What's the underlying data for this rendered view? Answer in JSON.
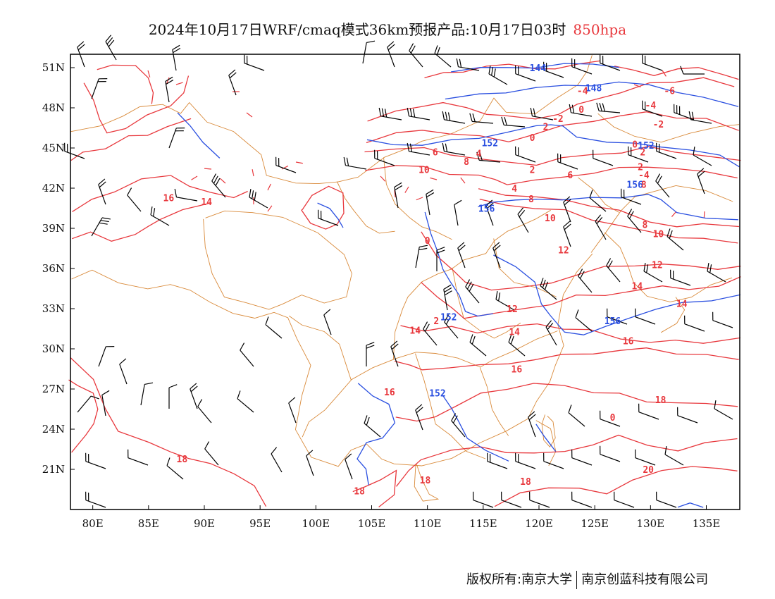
{
  "title": {
    "main": "2024年10月17日WRF/cmaq模式36km预报产品:10月17日03时",
    "level": "850hpa"
  },
  "map": {
    "type": "weather-chart",
    "lon_range": [
      78,
      138
    ],
    "lat_range": [
      18,
      52
    ],
    "lat_ticks": [
      "51N",
      "48N",
      "45N",
      "42N",
      "39N",
      "36N",
      "33N",
      "30N",
      "27N",
      "24N",
      "21N"
    ],
    "lon_ticks": [
      "80E",
      "85E",
      "90E",
      "95E",
      "100E",
      "105E",
      "110E",
      "115E",
      "120E",
      "125E",
      "130E",
      "135E"
    ],
    "geopotential_color": "#2a4fe0",
    "temperature_color": "#e8383d",
    "border_color": "#d98a3a",
    "wind_color": "#000000",
    "geopotential_labels": [
      {
        "text": "144",
        "lon": 119.9,
        "lat": 51.0
      },
      {
        "text": "148",
        "lon": 124.9,
        "lat": 49.5
      },
      {
        "text": "152",
        "lon": 115.6,
        "lat": 45.4
      },
      {
        "text": "152",
        "lon": 129.6,
        "lat": 45.2
      },
      {
        "text": "156",
        "lon": 128.6,
        "lat": 42.3
      },
      {
        "text": "156",
        "lon": 115.3,
        "lat": 40.5
      },
      {
        "text": "152",
        "lon": 111.9,
        "lat": 32.4
      },
      {
        "text": "156",
        "lon": 126.6,
        "lat": 32.1
      },
      {
        "text": "152",
        "lon": 110.9,
        "lat": 26.7
      }
    ],
    "temperature_labels": [
      {
        "text": "-4",
        "lon": 123.9,
        "lat": 49.3
      },
      {
        "text": "-6",
        "lon": 131.7,
        "lat": 49.3
      },
      {
        "text": "-4",
        "lon": 130.0,
        "lat": 48.2
      },
      {
        "text": "-2",
        "lon": 130.7,
        "lat": 46.8
      },
      {
        "text": "2",
        "lon": 120.6,
        "lat": 46.6
      },
      {
        "text": "0",
        "lon": 119.4,
        "lat": 45.8
      },
      {
        "text": "0",
        "lon": 128.6,
        "lat": 45.3
      },
      {
        "text": "2",
        "lon": 129.3,
        "lat": 44.7
      },
      {
        "text": "2",
        "lon": 129.1,
        "lat": 43.6
      },
      {
        "text": "-4",
        "lon": 129.4,
        "lat": 43.0
      },
      {
        "text": "6",
        "lon": 110.7,
        "lat": 44.7
      },
      {
        "text": "4",
        "lon": 114.6,
        "lat": 44.6
      },
      {
        "text": "8",
        "lon": 113.5,
        "lat": 44.0
      },
      {
        "text": "10",
        "lon": 109.7,
        "lat": 43.4
      },
      {
        "text": "2",
        "lon": 119.4,
        "lat": 43.4
      },
      {
        "text": "6",
        "lon": 122.8,
        "lat": 43.0
      },
      {
        "text": "4",
        "lon": 117.8,
        "lat": 42.0
      },
      {
        "text": "8",
        "lon": 119.3,
        "lat": 41.2
      },
      {
        "text": "10",
        "lon": 121.0,
        "lat": 39.8
      },
      {
        "text": "8",
        "lon": 129.4,
        "lat": 42.3
      },
      {
        "text": "8",
        "lon": 129.5,
        "lat": 39.3
      },
      {
        "text": "10",
        "lon": 130.7,
        "lat": 38.6
      },
      {
        "text": "12",
        "lon": 122.2,
        "lat": 37.4
      },
      {
        "text": "12",
        "lon": 130.6,
        "lat": 36.3
      },
      {
        "text": "14",
        "lon": 128.8,
        "lat": 34.7
      },
      {
        "text": "14",
        "lon": 132.8,
        "lat": 33.4
      },
      {
        "text": "12",
        "lon": 117.6,
        "lat": 33.0
      },
      {
        "text": "2",
        "lon": 110.8,
        "lat": 32.1
      },
      {
        "text": "14",
        "lon": 108.9,
        "lat": 31.4
      },
      {
        "text": "14",
        "lon": 117.8,
        "lat": 31.3
      },
      {
        "text": "16",
        "lon": 128.0,
        "lat": 30.6
      },
      {
        "text": "16",
        "lon": 118.0,
        "lat": 28.5
      },
      {
        "text": "16",
        "lon": 106.6,
        "lat": 26.8
      },
      {
        "text": "0",
        "lon": 126.6,
        "lat": 24.9
      },
      {
        "text": "18",
        "lon": 130.9,
        "lat": 26.2
      },
      {
        "text": "18",
        "lon": 88.0,
        "lat": 21.8
      },
      {
        "text": "20",
        "lon": 129.8,
        "lat": 21.0
      },
      {
        "text": "18",
        "lon": 118.8,
        "lat": 20.1
      },
      {
        "text": "18",
        "lon": 109.8,
        "lat": 20.2
      },
      {
        "text": "18",
        "lon": 103.9,
        "lat": 19.4
      },
      {
        "text": "16",
        "lon": 86.8,
        "lat": 41.3
      },
      {
        "text": "14",
        "lon": 90.2,
        "lat": 41.0
      },
      {
        "text": "-2",
        "lon": 121.7,
        "lat": 47.2
      },
      {
        "text": "0",
        "lon": 110.0,
        "lat": 38.1
      },
      {
        "text": "0",
        "lon": 123.8,
        "lat": 47.9
      }
    ]
  },
  "footer": {
    "left": "版权所有:南京大学",
    "right": "南京创蓝科技有限公司"
  }
}
